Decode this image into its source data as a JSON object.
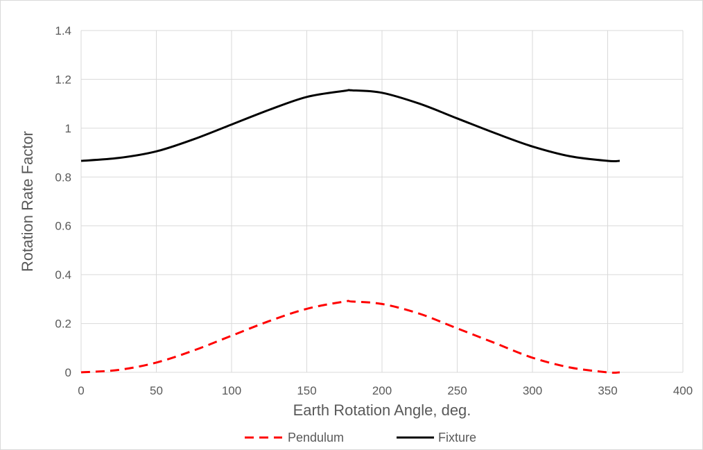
{
  "chart_data": {
    "type": "line",
    "xlabel": "Earth Rotation Angle, deg.",
    "ylabel": "Rotation Rate Factor",
    "xlim": [
      0,
      400
    ],
    "ylim": [
      0,
      1.4
    ],
    "xticks": [
      0,
      50,
      100,
      150,
      200,
      250,
      300,
      350,
      400
    ],
    "yticks": [
      0,
      0.2,
      0.4,
      0.6,
      0.8,
      1,
      1.2,
      1.4
    ],
    "xtick_labels": [
      "0",
      "50",
      "100",
      "150",
      "200",
      "250",
      "300",
      "350",
      "400"
    ],
    "ytick_labels": [
      "0",
      "0.2",
      "0.4",
      "0.6",
      "0.8",
      "1",
      "1.2",
      "1.4"
    ],
    "grid": true,
    "legend_position": "bottom",
    "series": [
      {
        "name": "Pendulum",
        "color": "#ff0000",
        "style": "dashed",
        "x": [
          0,
          25,
          50,
          75,
          100,
          125,
          150,
          175,
          180,
          200,
          225,
          250,
          275,
          300,
          325,
          350,
          358
        ],
        "y": [
          0.0,
          0.01,
          0.04,
          0.09,
          0.15,
          0.21,
          0.26,
          0.29,
          0.29,
          0.28,
          0.24,
          0.18,
          0.12,
          0.06,
          0.02,
          0.0,
          0.0
        ]
      },
      {
        "name": "Fixture",
        "color": "#000000",
        "style": "solid",
        "x": [
          0,
          25,
          50,
          75,
          100,
          125,
          150,
          175,
          180,
          200,
          225,
          250,
          275,
          300,
          325,
          350,
          358
        ],
        "y": [
          0.866,
          0.878,
          0.905,
          0.955,
          1.015,
          1.075,
          1.128,
          1.153,
          1.155,
          1.145,
          1.1,
          1.04,
          0.98,
          0.925,
          0.885,
          0.866,
          0.866
        ]
      }
    ]
  }
}
